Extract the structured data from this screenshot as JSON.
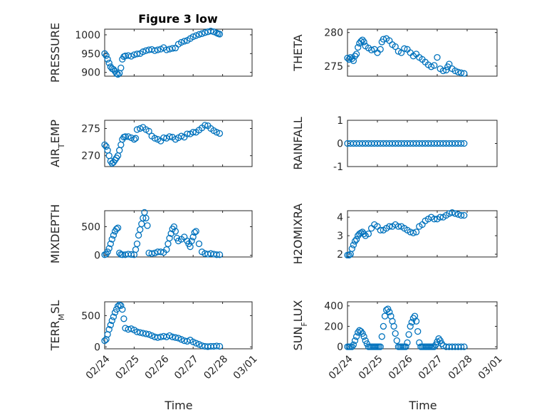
{
  "figure": {
    "title": "Figure 3 low",
    "xlabel": "Time",
    "x_ticks": [
      "02/24",
      "02/25",
      "02/26",
      "02/27",
      "02/28",
      "03/01"
    ],
    "marker_color": "#0072bd",
    "marker": "circle"
  },
  "chart_data": [
    {
      "type": "scatter",
      "title": "Figure 3 low",
      "ylabel": "PRESSURE",
      "xlabel": "",
      "xlim": [
        0,
        5
      ],
      "ylim": [
        890,
        1015
      ],
      "yticks": [
        900,
        950,
        1000
      ],
      "grid": true,
      "x": [
        0.0,
        0.05,
        0.1,
        0.15,
        0.2,
        0.25,
        0.3,
        0.35,
        0.4,
        0.45,
        0.5,
        0.55,
        0.6,
        0.65,
        0.7,
        0.8,
        0.9,
        1.0,
        1.1,
        1.2,
        1.3,
        1.4,
        1.5,
        1.6,
        1.7,
        1.8,
        1.9,
        2.0,
        2.1,
        2.2,
        2.3,
        2.4,
        2.5,
        2.6,
        2.7,
        2.8,
        2.9,
        3.0,
        3.1,
        3.2,
        3.3,
        3.4,
        3.5,
        3.6,
        3.7,
        3.8,
        3.85,
        3.9
      ],
      "values": [
        950,
        945,
        935,
        925,
        915,
        910,
        908,
        903,
        897,
        895,
        898,
        912,
        935,
        942,
        944,
        945,
        943,
        947,
        949,
        950,
        955,
        958,
        960,
        961,
        958,
        960,
        962,
        966,
        960,
        962,
        964,
        965,
        975,
        980,
        983,
        985,
        990,
        995,
        998,
        1001,
        1003,
        1006,
        1008,
        1010,
        1008,
        1005,
        1003,
        1002
      ]
    },
    {
      "type": "scatter",
      "ylabel": "THETA",
      "xlabel": "",
      "xlim": [
        0,
        5
      ],
      "ylim": [
        273.5,
        280.5
      ],
      "yticks": [
        275,
        280
      ],
      "grid": true,
      "x": [
        0.0,
        0.05,
        0.1,
        0.15,
        0.2,
        0.25,
        0.3,
        0.35,
        0.4,
        0.45,
        0.5,
        0.55,
        0.6,
        0.7,
        0.8,
        0.9,
        1.0,
        1.1,
        1.15,
        1.2,
        1.3,
        1.4,
        1.5,
        1.6,
        1.7,
        1.8,
        1.9,
        2.0,
        2.1,
        2.2,
        2.3,
        2.4,
        2.5,
        2.6,
        2.7,
        2.8,
        2.9,
        3.0,
        3.1,
        3.2,
        3.3,
        3.35,
        3.4,
        3.5,
        3.6,
        3.7,
        3.8,
        3.9
      ],
      "values": [
        276.2,
        276.0,
        276.3,
        276.1,
        275.8,
        276.5,
        276.8,
        277.8,
        278.4,
        278.7,
        278.9,
        278.6,
        278.0,
        277.7,
        277.4,
        277.5,
        277.0,
        277.5,
        278.6,
        279.0,
        279.1,
        278.8,
        278.2,
        277.9,
        277.2,
        277.0,
        277.6,
        277.5,
        277.0,
        276.5,
        276.8,
        276.3,
        276.0,
        275.6,
        275.2,
        274.9,
        275.1,
        276.3,
        274.6,
        274.3,
        274.4,
        274.9,
        275.3,
        274.6,
        274.3,
        274.1,
        274.0,
        273.9
      ]
    },
    {
      "type": "scatter",
      "ylabel": "AIR_TEMP",
      "xlabel": "",
      "xlim": [
        0,
        5
      ],
      "ylim": [
        268,
        276.5
      ],
      "yticks": [
        270,
        275
      ],
      "grid": true,
      "x": [
        0.0,
        0.05,
        0.1,
        0.15,
        0.2,
        0.25,
        0.3,
        0.35,
        0.4,
        0.45,
        0.5,
        0.55,
        0.6,
        0.65,
        0.7,
        0.8,
        0.9,
        1.0,
        1.05,
        1.1,
        1.2,
        1.3,
        1.4,
        1.5,
        1.6,
        1.7,
        1.8,
        1.9,
        2.0,
        2.1,
        2.2,
        2.3,
        2.4,
        2.5,
        2.6,
        2.7,
        2.8,
        2.9,
        3.0,
        3.1,
        3.2,
        3.3,
        3.4,
        3.5,
        3.6,
        3.7,
        3.8,
        3.9
      ],
      "values": [
        272.0,
        271.7,
        271.0,
        270.0,
        269.0,
        268.6,
        268.8,
        269.2,
        269.6,
        270.0,
        271.0,
        272.0,
        273.0,
        273.4,
        273.5,
        273.5,
        273.3,
        273.0,
        273.2,
        274.8,
        275.0,
        275.2,
        274.8,
        274.5,
        273.6,
        273.2,
        273.0,
        272.7,
        273.3,
        273.2,
        273.5,
        273.4,
        273.0,
        273.3,
        273.6,
        273.4,
        274.0,
        274.0,
        274.3,
        274.3,
        274.7,
        275.1,
        275.6,
        275.5,
        275.0,
        274.6,
        274.3,
        274.1
      ]
    },
    {
      "type": "scatter",
      "ylabel": "RAINFALL",
      "xlabel": "",
      "xlim": [
        0,
        5
      ],
      "ylim": [
        -1,
        1
      ],
      "yticks": [
        -1,
        0,
        1
      ],
      "grid": true,
      "x": [
        0.0,
        0.1,
        0.2,
        0.3,
        0.4,
        0.5,
        0.6,
        0.7,
        0.8,
        0.9,
        1.0,
        1.1,
        1.2,
        1.3,
        1.4,
        1.5,
        1.6,
        1.7,
        1.8,
        1.9,
        2.0,
        2.1,
        2.2,
        2.3,
        2.4,
        2.5,
        2.6,
        2.7,
        2.8,
        2.9,
        3.0,
        3.1,
        3.2,
        3.3,
        3.4,
        3.5,
        3.6,
        3.7,
        3.8,
        3.9
      ],
      "values": [
        0,
        0,
        0,
        0,
        0,
        0,
        0,
        0,
        0,
        0,
        0,
        0,
        0,
        0,
        0,
        0,
        0,
        0,
        0,
        0,
        0,
        0,
        0,
        0,
        0,
        0,
        0,
        0,
        0,
        0,
        0,
        0,
        0,
        0,
        0,
        0,
        0,
        0,
        0,
        0
      ]
    },
    {
      "type": "scatter",
      "ylabel": "MIXDEPTH",
      "xlabel": "",
      "xlim": [
        0,
        5
      ],
      "ylim": [
        -30,
        780
      ],
      "yticks": [
        0,
        500
      ],
      "grid": true,
      "x": [
        0.0,
        0.05,
        0.1,
        0.15,
        0.2,
        0.25,
        0.3,
        0.35,
        0.4,
        0.45,
        0.5,
        0.55,
        0.6,
        0.7,
        0.8,
        0.9,
        1.0,
        1.05,
        1.1,
        1.15,
        1.2,
        1.25,
        1.3,
        1.35,
        1.4,
        1.45,
        1.5,
        1.6,
        1.7,
        1.8,
        1.9,
        2.0,
        2.1,
        2.15,
        2.2,
        2.25,
        2.3,
        2.35,
        2.4,
        2.45,
        2.5,
        2.6,
        2.7,
        2.8,
        2.85,
        2.9,
        2.95,
        3.0,
        3.05,
        3.1,
        3.2,
        3.3,
        3.4,
        3.5,
        3.6,
        3.7,
        3.8,
        3.9
      ],
      "values": [
        10,
        20,
        60,
        120,
        200,
        280,
        350,
        420,
        460,
        480,
        40,
        15,
        10,
        10,
        20,
        15,
        10,
        100,
        200,
        350,
        450,
        550,
        650,
        750,
        650,
        520,
        40,
        30,
        40,
        60,
        60,
        50,
        100,
        200,
        300,
        380,
        460,
        500,
        420,
        300,
        250,
        280,
        320,
        250,
        200,
        150,
        250,
        320,
        400,
        420,
        200,
        60,
        30,
        20,
        30,
        20,
        10,
        10
      ]
    },
    {
      "type": "scatter",
      "ylabel": "H2OMIXRA",
      "xlabel": "",
      "xlim": [
        0,
        5
      ],
      "ylim": [
        1.85,
        4.35
      ],
      "yticks": [
        2,
        3,
        4
      ],
      "grid": true,
      "x": [
        0.0,
        0.05,
        0.1,
        0.15,
        0.2,
        0.25,
        0.3,
        0.35,
        0.4,
        0.45,
        0.5,
        0.55,
        0.6,
        0.7,
        0.8,
        0.9,
        1.0,
        1.1,
        1.2,
        1.3,
        1.4,
        1.5,
        1.6,
        1.7,
        1.8,
        1.9,
        2.0,
        2.1,
        2.2,
        2.3,
        2.4,
        2.5,
        2.6,
        2.7,
        2.8,
        2.9,
        3.0,
        3.1,
        3.2,
        3.3,
        3.4,
        3.5,
        3.6,
        3.7,
        3.8,
        3.9
      ],
      "values": [
        1.95,
        1.95,
        2.0,
        2.3,
        2.5,
        2.7,
        2.8,
        3.0,
        3.1,
        3.15,
        3.2,
        3.1,
        3.0,
        3.1,
        3.4,
        3.6,
        3.5,
        3.3,
        3.3,
        3.4,
        3.5,
        3.5,
        3.6,
        3.5,
        3.5,
        3.4,
        3.3,
        3.2,
        3.15,
        3.2,
        3.5,
        3.6,
        3.8,
        3.9,
        4.0,
        3.9,
        3.9,
        4.0,
        4.0,
        4.1,
        4.2,
        4.25,
        4.2,
        4.15,
        4.1,
        4.1
      ]
    },
    {
      "type": "scatter",
      "ylabel": "TERR_MSL",
      "xlabel": "Time",
      "xlim": [
        0,
        5
      ],
      "ylim": [
        -30,
        720
      ],
      "yticks": [
        0,
        500
      ],
      "grid": true,
      "x": [
        0.0,
        0.05,
        0.1,
        0.15,
        0.2,
        0.25,
        0.3,
        0.35,
        0.4,
        0.45,
        0.5,
        0.55,
        0.6,
        0.65,
        0.7,
        0.8,
        0.9,
        1.0,
        1.1,
        1.2,
        1.3,
        1.4,
        1.5,
        1.6,
        1.7,
        1.8,
        1.9,
        2.0,
        2.1,
        2.2,
        2.3,
        2.4,
        2.5,
        2.6,
        2.7,
        2.8,
        2.9,
        3.0,
        3.1,
        3.2,
        3.3,
        3.4,
        3.5,
        3.6,
        3.7,
        3.8,
        3.9
      ],
      "values": [
        100,
        120,
        200,
        280,
        350,
        420,
        480,
        550,
        600,
        650,
        670,
        660,
        600,
        450,
        300,
        280,
        290,
        270,
        240,
        230,
        220,
        210,
        200,
        180,
        160,
        150,
        160,
        170,
        160,
        180,
        160,
        150,
        140,
        120,
        100,
        90,
        110,
        80,
        60,
        40,
        20,
        10,
        5,
        10,
        10,
        15,
        10
      ]
    },
    {
      "type": "scatter",
      "ylabel": "SUN_FLUX",
      "xlabel": "Time",
      "xlim": [
        0,
        5
      ],
      "ylim": [
        -20,
        440
      ],
      "yticks": [
        0,
        200,
        400
      ],
      "grid": true,
      "x": [
        0.0,
        0.05,
        0.1,
        0.15,
        0.2,
        0.25,
        0.3,
        0.35,
        0.4,
        0.45,
        0.5,
        0.55,
        0.6,
        0.65,
        0.7,
        0.75,
        0.8,
        0.85,
        0.9,
        0.95,
        1.0,
        1.05,
        1.1,
        1.15,
        1.2,
        1.25,
        1.3,
        1.35,
        1.4,
        1.45,
        1.5,
        1.55,
        1.6,
        1.65,
        1.7,
        1.75,
        1.8,
        1.85,
        1.9,
        1.95,
        2.0,
        2.05,
        2.1,
        2.15,
        2.2,
        2.25,
        2.3,
        2.35,
        2.4,
        2.45,
        2.5,
        2.55,
        2.6,
        2.65,
        2.7,
        2.75,
        2.8,
        2.85,
        2.9,
        2.95,
        3.0,
        3.05,
        3.1,
        3.15,
        3.2,
        3.3,
        3.4,
        3.5,
        3.6,
        3.7,
        3.8,
        3.9
      ],
      "values": [
        0,
        0,
        0,
        0,
        20,
        60,
        100,
        140,
        160,
        150,
        130,
        100,
        60,
        30,
        0,
        0,
        0,
        0,
        0,
        0,
        0,
        0,
        0,
        100,
        200,
        300,
        360,
        370,
        340,
        300,
        250,
        200,
        130,
        60,
        0,
        0,
        0,
        0,
        0,
        0,
        40,
        120,
        200,
        240,
        280,
        300,
        250,
        150,
        40,
        0,
        0,
        0,
        0,
        0,
        0,
        0,
        0,
        0,
        0,
        20,
        50,
        80,
        60,
        30,
        10,
        0,
        0,
        0,
        0,
        0,
        0,
        0
      ]
    }
  ]
}
